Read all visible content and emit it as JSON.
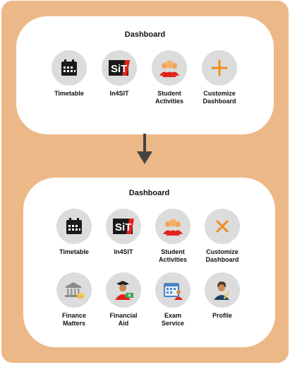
{
  "top_panel": {
    "title": "Dashboard",
    "tiles": [
      {
        "label": "Timetable",
        "icon": "calendar-icon"
      },
      {
        "label": "In4SIT",
        "icon": "in4sit-logo"
      },
      {
        "label": "Student\nActivities",
        "icon": "student-group-icon"
      },
      {
        "label": "Customize\nDashboard",
        "icon": "plus-icon"
      }
    ]
  },
  "bottom_panel": {
    "title": "Dashboard",
    "tiles": [
      {
        "label": "Timetable",
        "icon": "calendar-icon"
      },
      {
        "label": "In4SIT",
        "icon": "in4sit-logo"
      },
      {
        "label": "Student\nActivities",
        "icon": "student-group-icon"
      },
      {
        "label": "Customize\nDashboard",
        "icon": "close-icon"
      },
      {
        "label": "Finance\nMatters",
        "icon": "bank-icon"
      },
      {
        "label": "Financial\nAid",
        "icon": "graduate-money-icon"
      },
      {
        "label": "Exam\nService",
        "icon": "exam-calendar-icon"
      },
      {
        "label": "Profile",
        "icon": "profile-icon"
      }
    ]
  },
  "colors": {
    "background": "#edb887",
    "accent": "#f28a1c",
    "logo_red": "#e0231b"
  }
}
